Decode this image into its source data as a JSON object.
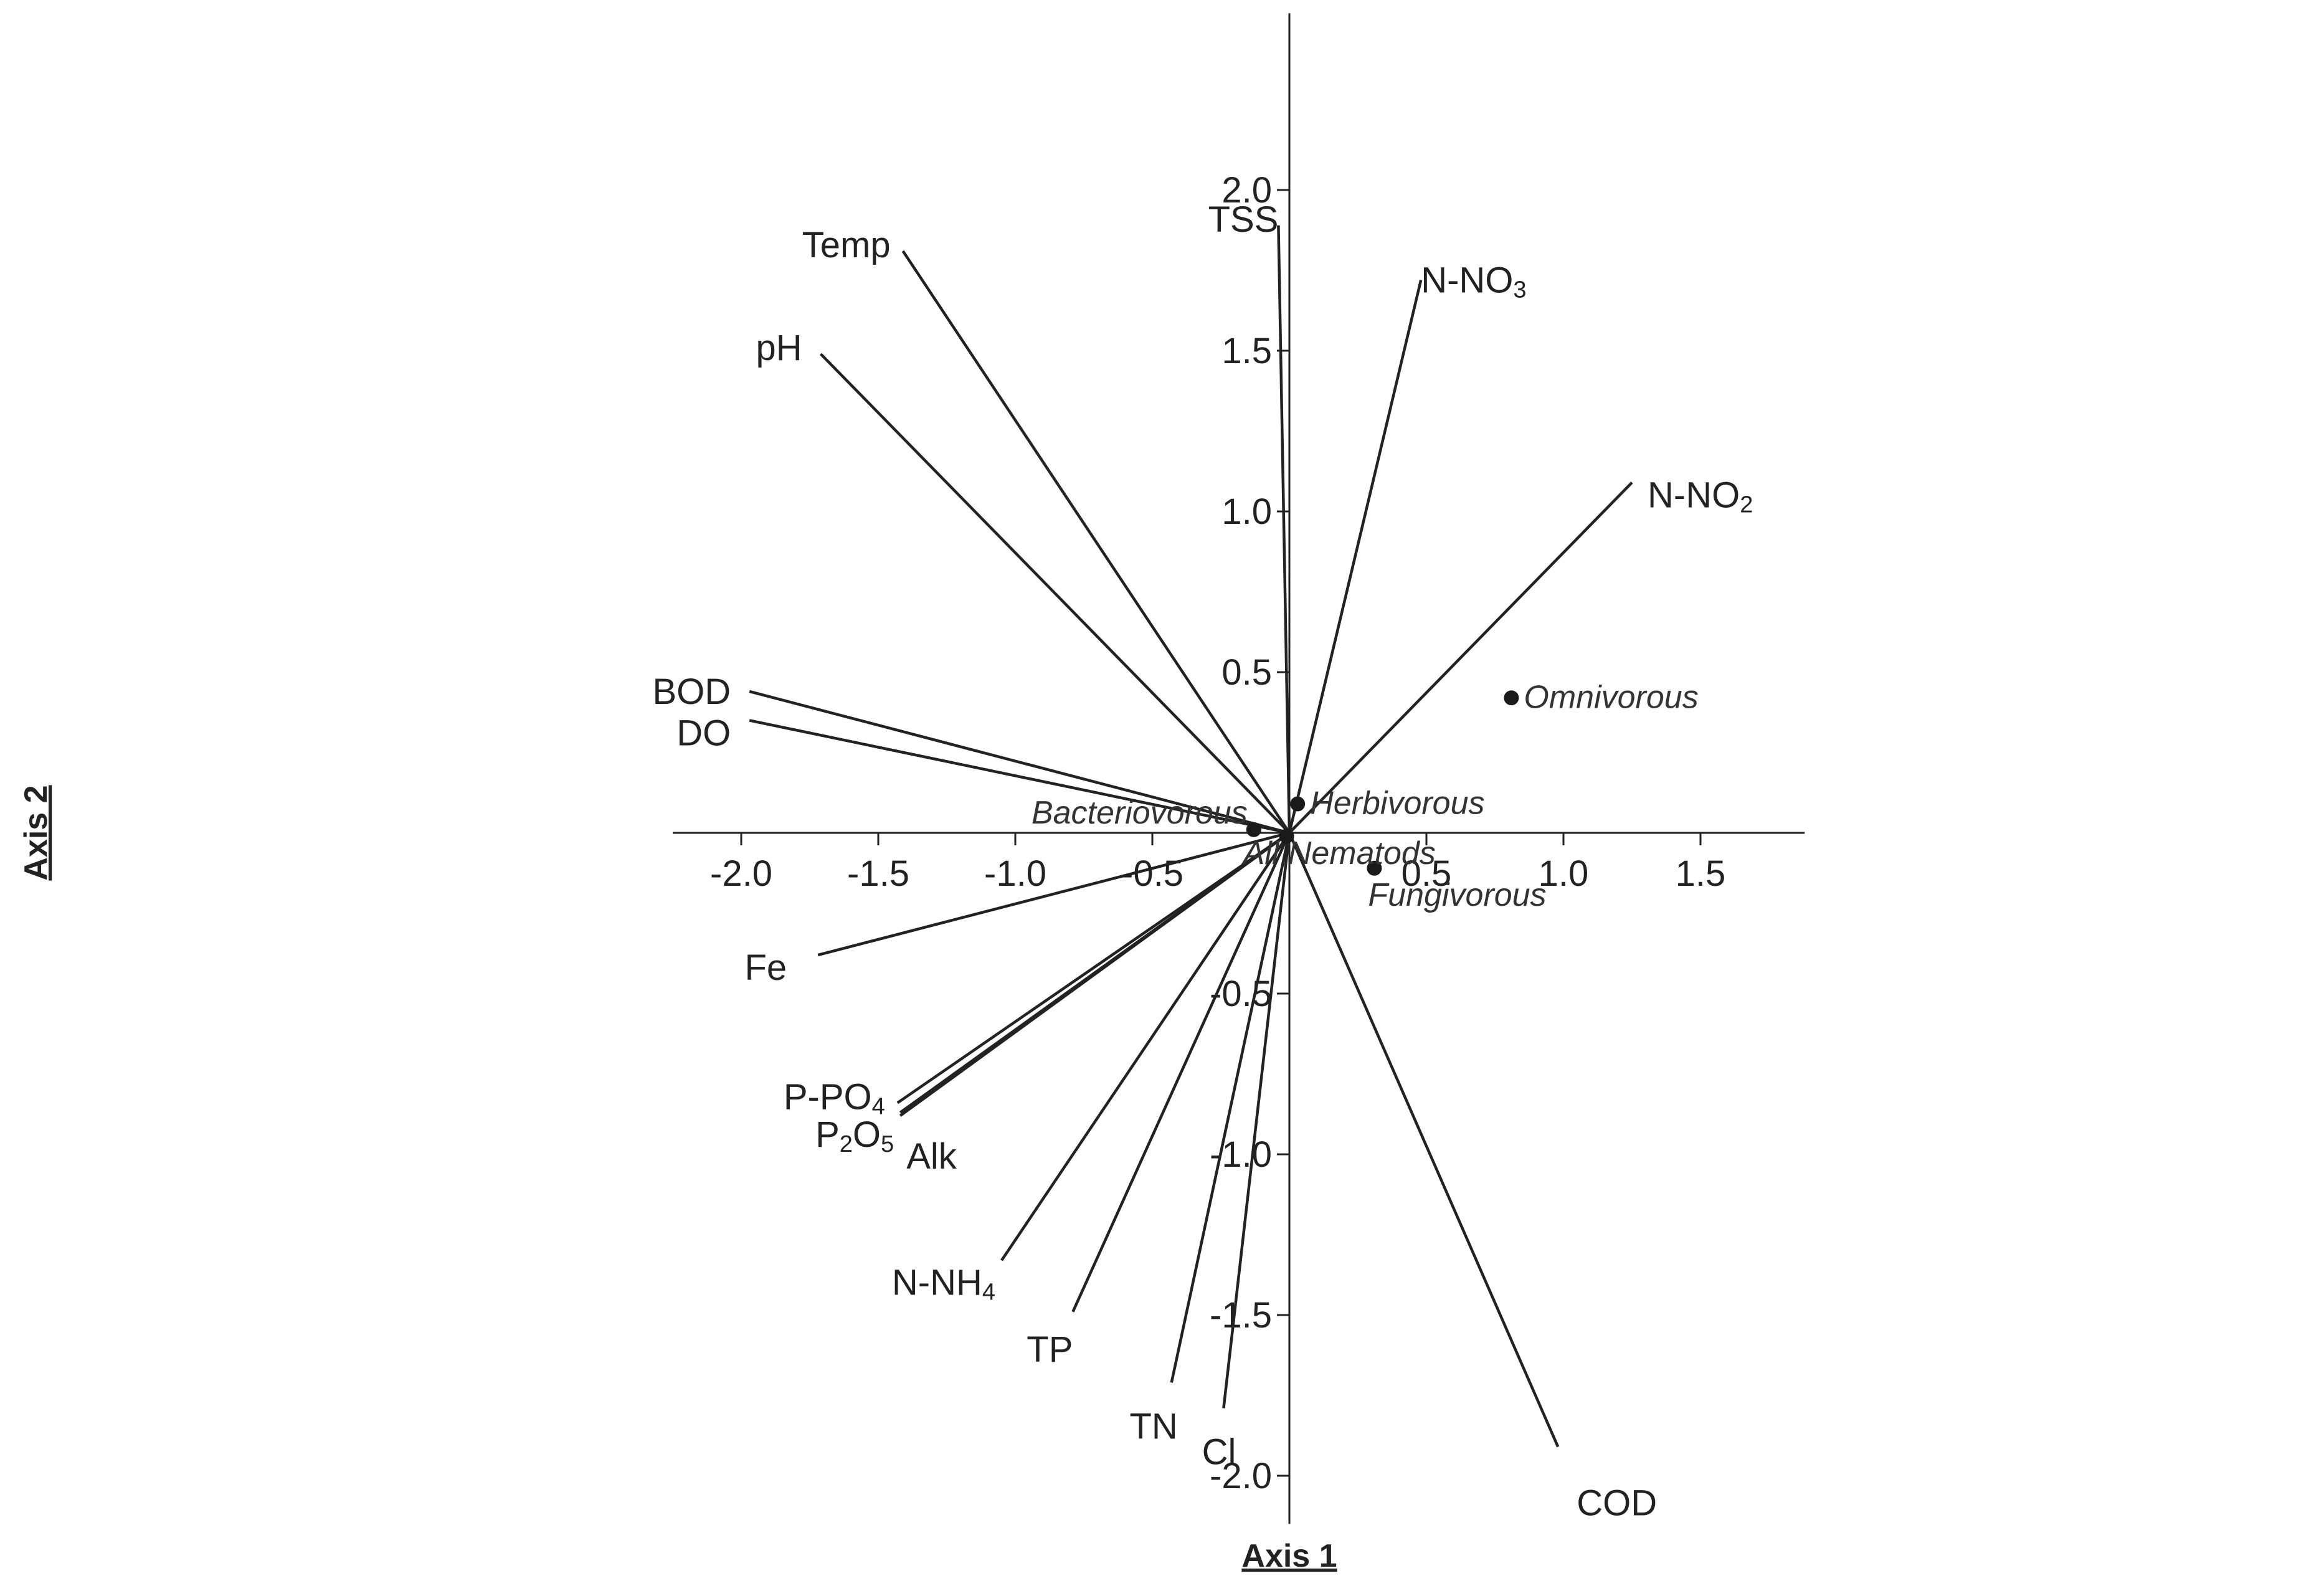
{
  "chart_data": {
    "type": "scatter",
    "subtype": "biplot",
    "xlabel": "Axis 1",
    "ylabel": "Axis 2",
    "xlim": [
      -2.25,
      1.88
    ],
    "ylim": [
      -2.15,
      2.55
    ],
    "x_ticks": [
      {
        "value": -2.0,
        "label": "-2.0"
      },
      {
        "value": -1.5,
        "label": "-1.5"
      },
      {
        "value": -1.0,
        "label": "-1.0"
      },
      {
        "value": -0.5,
        "label": "-0.5"
      },
      {
        "value": 0.5,
        "label": "0.5"
      },
      {
        "value": 1.0,
        "label": "1.0"
      },
      {
        "value": 1.5,
        "label": "1.5"
      }
    ],
    "y_ticks": [
      {
        "value": 2.0,
        "label": "2.0"
      },
      {
        "value": 1.5,
        "label": "1.5"
      },
      {
        "value": 1.0,
        "label": "1.0"
      },
      {
        "value": 0.5,
        "label": "0.5"
      },
      {
        "value": -0.5,
        "label": "-0.5"
      },
      {
        "value": -1.0,
        "label": "-1.0"
      },
      {
        "value": -1.5,
        "label": "-1.5"
      },
      {
        "value": -2.0,
        "label": "-2.0"
      }
    ],
    "vectors": [
      {
        "name": "Temp",
        "x": -1.41,
        "y": 1.81,
        "anchor": "end",
        "label_dx": -20,
        "label_dy": -10
      },
      {
        "name": "pH",
        "x": -1.71,
        "y": 1.49,
        "anchor": "end",
        "label_dx": -30,
        "label_dy": -10
      },
      {
        "name": "TSS",
        "x": -0.04,
        "y": 1.89,
        "anchor": "end",
        "label_dx": 0,
        "label_dy": -10
      },
      {
        "name": "N-NO",
        "sub": "3",
        "x": 0.48,
        "y": 1.72,
        "anchor": "start",
        "label_dx": 0,
        "label_dy": 0
      },
      {
        "name": "N-NO",
        "sub": "2",
        "x": 1.25,
        "y": 1.09,
        "anchor": "start",
        "label_dx": 25,
        "label_dy": 20
      },
      {
        "name": "BOD",
        "x": -1.97,
        "y": 0.44,
        "anchor": "end",
        "label_dx": -30,
        "label_dy": 0
      },
      {
        "name": "DO",
        "x": -1.97,
        "y": 0.35,
        "anchor": "end",
        "label_dx": -30,
        "label_dy": 20
      },
      {
        "name": "Fe",
        "x": -1.72,
        "y": -0.38,
        "anchor": "end",
        "label_dx": -50,
        "label_dy": 20
      },
      {
        "name": "P-PO",
        "sub": "4",
        "x": -1.43,
        "y": -0.84,
        "anchor": "end",
        "label_dx": -20,
        "label_dy": -10
      },
      {
        "name": "P",
        "sub": "2",
        "name2": "O",
        "sub2": "5",
        "x": -1.42,
        "y": -0.87,
        "anchor": "end",
        "label_dx": -10,
        "label_dy": 35
      },
      {
        "name": "Alk",
        "x": -1.42,
        "y": -0.88,
        "anchor": "start",
        "label_dx": 10,
        "label_dy": 65
      },
      {
        "name": "N-NH",
        "sub": "4",
        "x": -1.05,
        "y": -1.33,
        "anchor": "end",
        "label_dx": -10,
        "label_dy": 35
      },
      {
        "name": "TP",
        "x": -0.79,
        "y": -1.49,
        "anchor": "end",
        "label_dx": 0,
        "label_dy": 60
      },
      {
        "name": "TN",
        "x": -0.43,
        "y": -1.71,
        "anchor": "end",
        "label_dx": 10,
        "label_dy": 70
      },
      {
        "name": "Cl",
        "x": -0.24,
        "y": -1.79,
        "anchor": "end",
        "label_dx": 20,
        "label_dy": 70
      },
      {
        "name": "COD",
        "x": 0.98,
        "y": -1.91,
        "anchor": "start",
        "label_dx": 30,
        "label_dy": 90
      }
    ],
    "groups": [
      {
        "name": "Omnivorous",
        "x": 0.81,
        "y": 0.42,
        "label_side": "right"
      },
      {
        "name": "Herbivorous",
        "x": 0.03,
        "y": 0.09,
        "label_side": "right"
      },
      {
        "name": "Bacteriovorous",
        "x": -0.13,
        "y": 0.01,
        "label_side": "left"
      },
      {
        "name": "Fungivorous",
        "x": 0.31,
        "y": -0.11,
        "label_side": "below-right"
      },
      {
        "name": "All Nematods",
        "x": -0.01,
        "y": -0.01,
        "label_side": "below"
      }
    ]
  }
}
